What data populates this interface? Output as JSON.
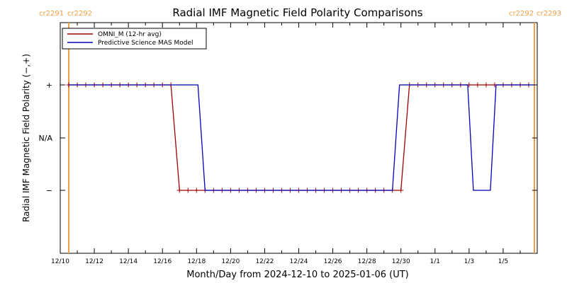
{
  "chart_data": {
    "type": "line",
    "title": "Radial IMF Magnetic Field Polarity Comparisons",
    "xlabel": "Month/Day from 2024-12-10 to 2025-01-06 (UT)",
    "ylabel": "Radial IMF Magnetic Field Polarity (−,+)",
    "x_start": "2024-12-10",
    "x_end": "2025-01-06",
    "x_ticks": [
      "12/10",
      "12/12",
      "12/14",
      "12/16",
      "12/18",
      "12/20",
      "12/22",
      "12/24",
      "12/26",
      "12/28",
      "12/30",
      "1/1",
      "1/3",
      "1/5"
    ],
    "y_ticks": [
      "+",
      "N/A",
      "−"
    ],
    "legend_position": "top-left",
    "colors": {
      "omni": "#a00000",
      "model": "#0000c0",
      "carrington": "#f0a040"
    },
    "carrington": {
      "left_labels": [
        "cr2291",
        "cr2292"
      ],
      "right_labels": [
        "cr2292",
        "cr2293"
      ],
      "boundaries": [
        "2024-12-10T12:00",
        "2025-01-06T20:00"
      ]
    },
    "series": [
      {
        "name": "OMNI_M (12-hr avg)",
        "color": "#a00000",
        "marker": "+",
        "points": [
          [
            "2024-12-10T12:00",
            "+"
          ],
          [
            "2024-12-16T12:00",
            "+"
          ],
          [
            "2024-12-17T00:00",
            "−"
          ],
          [
            "2024-12-30T00:00",
            "−"
          ],
          [
            "2024-12-30T12:00",
            "+"
          ],
          [
            "2025-01-06T12:00",
            "+"
          ]
        ],
        "markers": [
          [
            "2024-12-10T12:00",
            "+"
          ],
          [
            "2024-12-11T00:00",
            "+"
          ],
          [
            "2024-12-11T12:00",
            "+"
          ],
          [
            "2024-12-12T00:00",
            "+"
          ],
          [
            "2024-12-12T12:00",
            "+"
          ],
          [
            "2024-12-13T00:00",
            "+"
          ],
          [
            "2024-12-13T12:00",
            "+"
          ],
          [
            "2024-12-14T00:00",
            "+"
          ],
          [
            "2024-12-14T12:00",
            "+"
          ],
          [
            "2024-12-15T00:00",
            "+"
          ],
          [
            "2024-12-15T12:00",
            "+"
          ],
          [
            "2024-12-16T00:00",
            "+"
          ],
          [
            "2024-12-16T12:00",
            "+"
          ],
          [
            "2024-12-17T00:00",
            "−"
          ],
          [
            "2024-12-17T12:00",
            "−"
          ],
          [
            "2024-12-18T00:00",
            "−"
          ],
          [
            "2024-12-18T12:00",
            "−"
          ],
          [
            "2024-12-19T00:00",
            "−"
          ],
          [
            "2024-12-19T12:00",
            "−"
          ],
          [
            "2024-12-20T00:00",
            "−"
          ],
          [
            "2024-12-20T12:00",
            "−"
          ],
          [
            "2024-12-21T00:00",
            "−"
          ],
          [
            "2024-12-21T12:00",
            "−"
          ],
          [
            "2024-12-22T00:00",
            "−"
          ],
          [
            "2024-12-22T12:00",
            "−"
          ],
          [
            "2024-12-23T00:00",
            "−"
          ],
          [
            "2024-12-23T12:00",
            "−"
          ],
          [
            "2024-12-24T00:00",
            "−"
          ],
          [
            "2024-12-24T12:00",
            "−"
          ],
          [
            "2024-12-25T00:00",
            "−"
          ],
          [
            "2024-12-25T12:00",
            "−"
          ],
          [
            "2024-12-26T00:00",
            "−"
          ],
          [
            "2024-12-26T12:00",
            "−"
          ],
          [
            "2024-12-27T00:00",
            "−"
          ],
          [
            "2024-12-27T12:00",
            "−"
          ],
          [
            "2024-12-28T00:00",
            "−"
          ],
          [
            "2024-12-28T12:00",
            "−"
          ],
          [
            "2024-12-29T00:00",
            "−"
          ],
          [
            "2024-12-29T12:00",
            "−"
          ],
          [
            "2024-12-30T00:00",
            "−"
          ],
          [
            "2024-12-30T12:00",
            "+"
          ],
          [
            "2024-12-31T00:00",
            "+"
          ],
          [
            "2024-12-31T12:00",
            "+"
          ],
          [
            "2025-01-01T00:00",
            "+"
          ],
          [
            "2025-01-01T12:00",
            "+"
          ],
          [
            "2025-01-02T00:00",
            "+"
          ],
          [
            "2025-01-02T12:00",
            "+"
          ],
          [
            "2025-01-03T00:00",
            "+"
          ],
          [
            "2025-01-03T12:00",
            "+"
          ],
          [
            "2025-01-04T00:00",
            "+"
          ],
          [
            "2025-01-04T12:00",
            "+"
          ],
          [
            "2025-01-05T00:00",
            "+"
          ],
          [
            "2025-01-05T12:00",
            "+"
          ],
          [
            "2025-01-06T00:00",
            "+"
          ],
          [
            "2025-01-06T12:00",
            "+"
          ]
        ]
      },
      {
        "name": "Predictive Science MAS Model",
        "color": "#0000c0",
        "points": [
          [
            "2024-12-10T12:00",
            "+"
          ],
          [
            "2024-12-18T02:00",
            "+"
          ],
          [
            "2024-12-18T12:00",
            "−"
          ],
          [
            "2024-12-29T12:00",
            "−"
          ],
          [
            "2024-12-29T22:00",
            "+"
          ],
          [
            "2025-01-02T22:00",
            "+"
          ],
          [
            "2025-01-03T06:00",
            "−"
          ],
          [
            "2025-01-04T06:00",
            "−"
          ],
          [
            "2025-01-04T14:00",
            "+"
          ],
          [
            "2025-01-06T20:00",
            "+"
          ]
        ]
      }
    ]
  }
}
